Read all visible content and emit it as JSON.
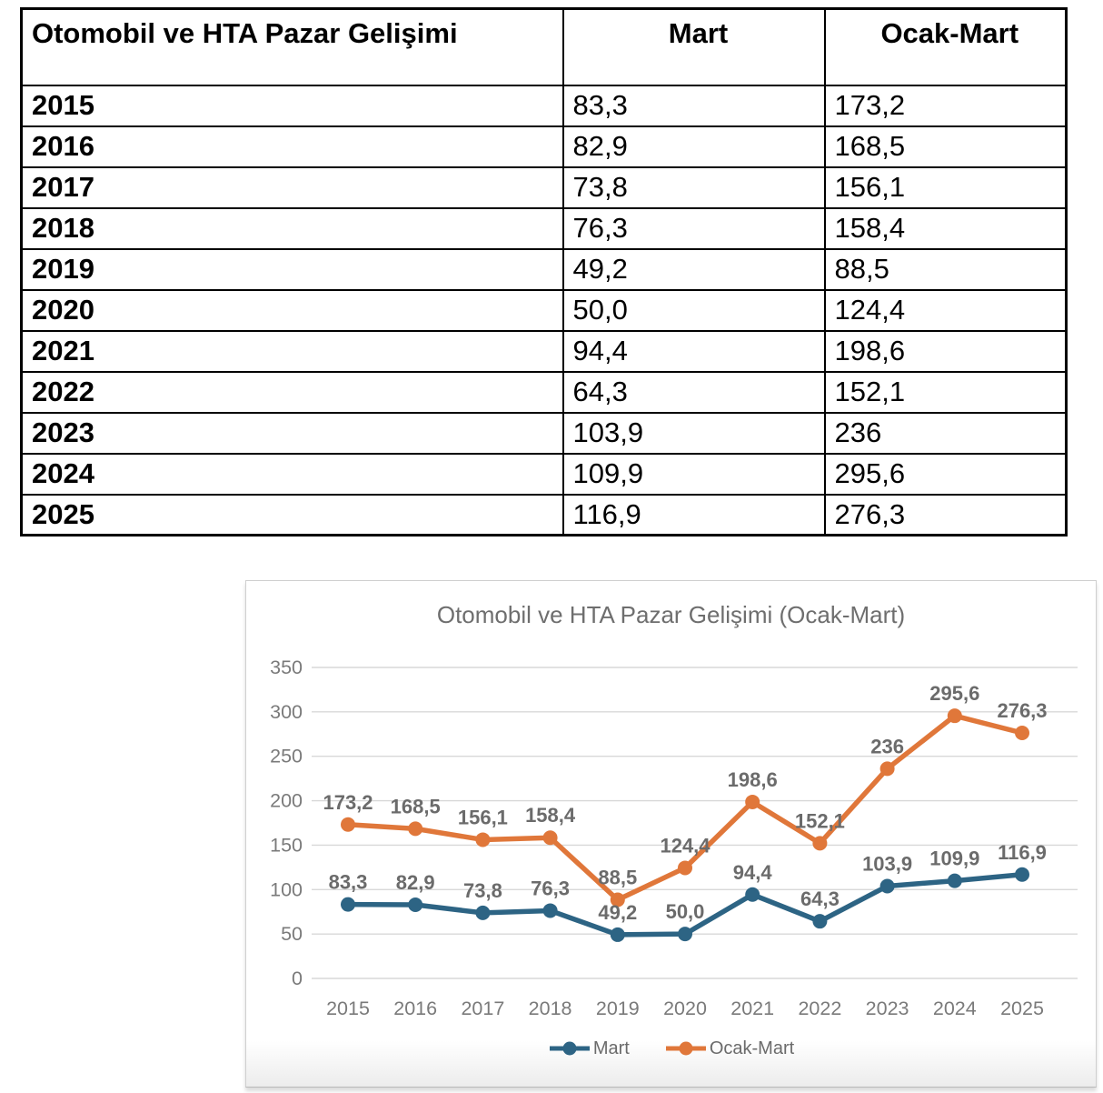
{
  "table": {
    "title": "Otomobil ve HTA Pazar Gelişimi",
    "columns": [
      "Mart",
      "Ocak-Mart"
    ],
    "rows": [
      {
        "year": "2015",
        "mart": "83,3",
        "ocak_mart": "173,2"
      },
      {
        "year": "2016",
        "mart": "82,9",
        "ocak_mart": "168,5"
      },
      {
        "year": "2017",
        "mart": "73,8",
        "ocak_mart": "156,1"
      },
      {
        "year": "2018",
        "mart": "76,3",
        "ocak_mart": "158,4"
      },
      {
        "year": "2019",
        "mart": "49,2",
        "ocak_mart": "88,5"
      },
      {
        "year": "2020",
        "mart": "50,0",
        "ocak_mart": "124,4"
      },
      {
        "year": "2021",
        "mart": "94,4",
        "ocak_mart": "198,6"
      },
      {
        "year": "2022",
        "mart": "64,3",
        "ocak_mart": "152,1"
      },
      {
        "year": "2023",
        "mart": "103,9",
        "ocak_mart": "236"
      },
      {
        "year": "2024",
        "mart": "109,9",
        "ocak_mart": "295,6"
      },
      {
        "year": "2025",
        "mart": "116,9",
        "ocak_mart": "276,3"
      }
    ]
  },
  "chart_data": {
    "type": "line",
    "title": "Otomobil ve HTA Pazar Gelişimi (Ocak-Mart)",
    "categories": [
      "2015",
      "2016",
      "2017",
      "2018",
      "2019",
      "2020",
      "2021",
      "2022",
      "2023",
      "2024",
      "2025"
    ],
    "series": [
      {
        "name": "Mart",
        "color": "#2d6484",
        "values": [
          83.3,
          82.9,
          73.8,
          76.3,
          49.2,
          50.0,
          94.4,
          64.3,
          103.9,
          109.9,
          116.9
        ],
        "labels": [
          "83,3",
          "82,9",
          "73,8",
          "76,3",
          "49,2",
          "50,0",
          "94,4",
          "64,3",
          "103,9",
          "109,9",
          "116,9"
        ]
      },
      {
        "name": "Ocak-Mart",
        "color": "#e0773a",
        "values": [
          173.2,
          168.5,
          156.1,
          158.4,
          88.5,
          124.4,
          198.6,
          152.1,
          236,
          295.6,
          276.3
        ],
        "labels": [
          "173,2",
          "168,5",
          "156,1",
          "158,4",
          "88,5",
          "124,4",
          "198,6",
          "152,1",
          "236",
          "295,6",
          "276,3"
        ]
      }
    ],
    "ylim": [
      0,
      350
    ],
    "yticks": [
      0,
      50,
      100,
      150,
      200,
      250,
      300,
      350
    ],
    "grid": true,
    "legend_position": "bottom",
    "grid_color": "#d8d8d8",
    "axis_label_color": "#7a7a7a",
    "data_label_color": "#6b6b6b",
    "title_color": "#6e6e6e"
  }
}
